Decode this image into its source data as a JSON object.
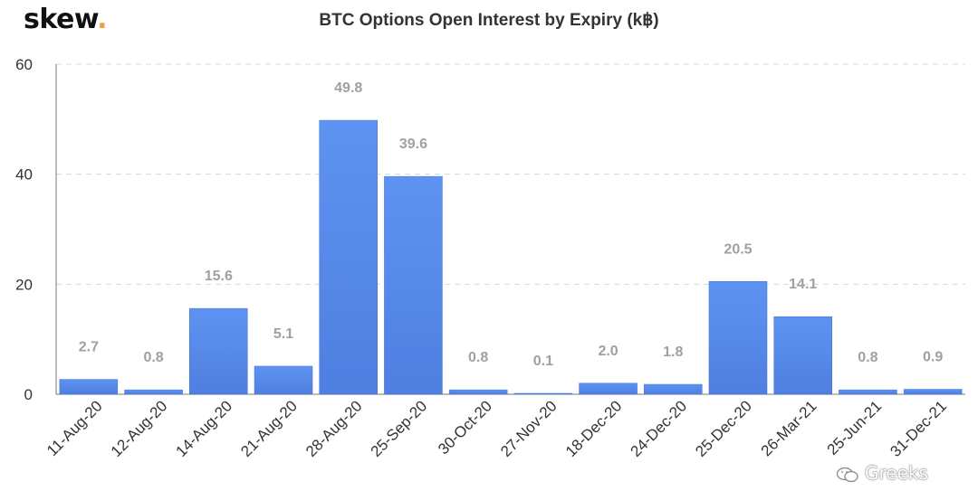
{
  "brand": {
    "name": "skew",
    "dot": "."
  },
  "watermark": {
    "text": "Greeks",
    "logo_icon": "wechat-icon"
  },
  "colors": {
    "bar": "#5b8def",
    "bar_dark": "#4f7fe0",
    "grid": "#d8d8d8",
    "label": "#a0a0a0",
    "axis": "#777777"
  },
  "chart_data": {
    "type": "bar",
    "title": "BTC Options Open Interest by Expiry (k฿)",
    "xlabel": "",
    "ylabel": "",
    "ylim": [
      0,
      60
    ],
    "yticks": [
      0,
      20,
      40,
      60
    ],
    "grid": true,
    "categories": [
      "11-Aug-20",
      "12-Aug-20",
      "14-Aug-20",
      "21-Aug-20",
      "28-Aug-20",
      "25-Sep-20",
      "30-Oct-20",
      "27-Nov-20",
      "18-Dec-20",
      "24-Dec-20",
      "25-Dec-20",
      "26-Mar-21",
      "25-Jun-21",
      "31-Dec-21"
    ],
    "values": [
      2.7,
      0.8,
      15.6,
      5.1,
      49.8,
      39.6,
      0.8,
      0.1,
      2.0,
      1.8,
      20.5,
      14.1,
      0.8,
      0.9
    ],
    "value_labels": [
      "2.7",
      "0.8",
      "15.6",
      "5.1",
      "49.8",
      "39.6",
      "0.8",
      "0.1",
      "2.0",
      "1.8",
      "20.5",
      "14.1",
      "0.8",
      "0.9"
    ]
  }
}
